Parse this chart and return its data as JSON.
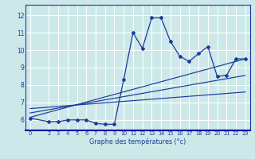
{
  "xlabel": "Graphe des températures (°c)",
  "bg_color": "#cce8e8",
  "grid_color": "#ffffff",
  "line_color": "#1a3a9e",
  "x_ticks": [
    0,
    2,
    3,
    4,
    5,
    6,
    7,
    8,
    9,
    10,
    11,
    12,
    13,
    14,
    15,
    16,
    17,
    18,
    19,
    20,
    21,
    22,
    23
  ],
  "y_ticks": [
    6,
    7,
    8,
    9,
    10,
    11,
    12
  ],
  "xlim": [
    -0.5,
    23.5
  ],
  "ylim": [
    5.4,
    12.6
  ],
  "main_series_x": [
    0,
    2,
    3,
    4,
    5,
    6,
    7,
    8,
    9,
    10,
    11,
    12,
    13,
    14,
    15,
    16,
    17,
    18,
    19,
    20,
    21,
    22,
    23
  ],
  "main_series_y": [
    6.1,
    5.9,
    5.9,
    6.0,
    6.0,
    6.0,
    5.8,
    5.75,
    5.75,
    8.3,
    11.0,
    10.1,
    11.85,
    11.85,
    10.5,
    9.65,
    9.35,
    9.8,
    10.2,
    8.5,
    8.55,
    9.5,
    9.5
  ],
  "line1_x": [
    0,
    23
  ],
  "line1_y": [
    6.15,
    9.5
  ],
  "line2_x": [
    0,
    23
  ],
  "line2_y": [
    6.4,
    8.55
  ],
  "line3_x": [
    0,
    23
  ],
  "line3_y": [
    6.65,
    7.6
  ],
  "xtick_fontsize": 4.8,
  "ytick_fontsize": 5.5,
  "xlabel_fontsize": 5.8
}
